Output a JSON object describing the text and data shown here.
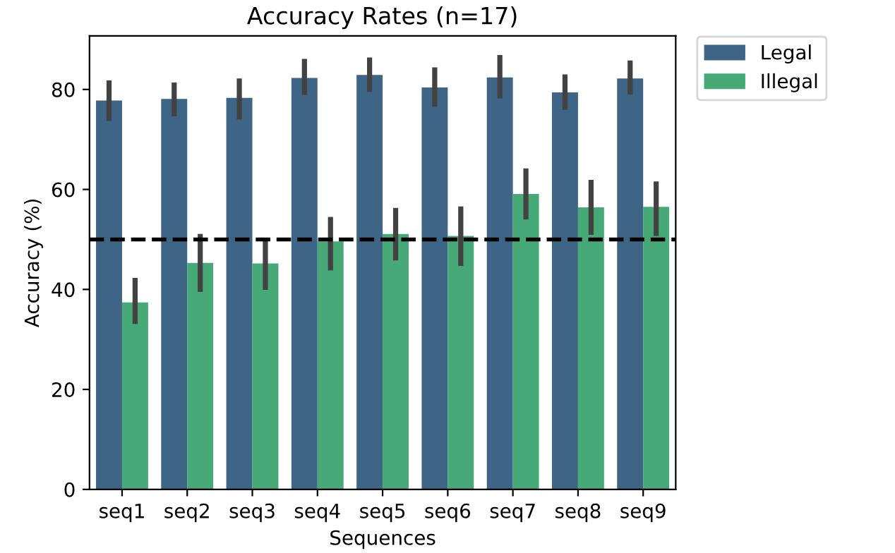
{
  "chart_data": {
    "type": "bar",
    "title": "Accuracy Rates (n=17)",
    "xlabel": "Sequences",
    "ylabel": "Accuracy (%)",
    "categories": [
      "seq1",
      "seq2",
      "seq3",
      "seq4",
      "seq5",
      "seq6",
      "seq7",
      "seq8",
      "seq9"
    ],
    "series": [
      {
        "name": "Legal",
        "color": "#3e6585",
        "values": [
          77.8,
          78.1,
          78.3,
          82.3,
          82.9,
          80.4,
          82.4,
          79.4,
          82.2
        ],
        "errors": [
          [
            73.7,
            81.8
          ],
          [
            74.6,
            81.4
          ],
          [
            74.0,
            82.2
          ],
          [
            78.9,
            86.1
          ],
          [
            79.5,
            86.4
          ],
          [
            76.5,
            84.4
          ],
          [
            78.2,
            86.9
          ],
          [
            75.9,
            83.0
          ],
          [
            79.0,
            85.8
          ]
        ]
      },
      {
        "name": "Illegal",
        "color": "#47a977",
        "values": [
          37.4,
          45.3,
          45.2,
          49.6,
          51.1,
          50.7,
          59.1,
          56.4,
          56.5
        ],
        "errors": [
          [
            33.1,
            42.3
          ],
          [
            39.5,
            51.1
          ],
          [
            39.9,
            49.9
          ],
          [
            43.8,
            54.5
          ],
          [
            45.8,
            56.3
          ],
          [
            44.7,
            56.6
          ],
          [
            54.0,
            64.2
          ],
          [
            50.9,
            61.9
          ],
          [
            50.7,
            61.6
          ]
        ]
      }
    ],
    "ylim": [
      0,
      90.7
    ],
    "yticks": [
      0,
      20,
      40,
      60,
      80
    ],
    "ref_lines": [
      {
        "axis": "y",
        "value": 50,
        "color": "#000000",
        "line_style": "dashed"
      }
    ],
    "legend": "top right",
    "grid": false
  }
}
